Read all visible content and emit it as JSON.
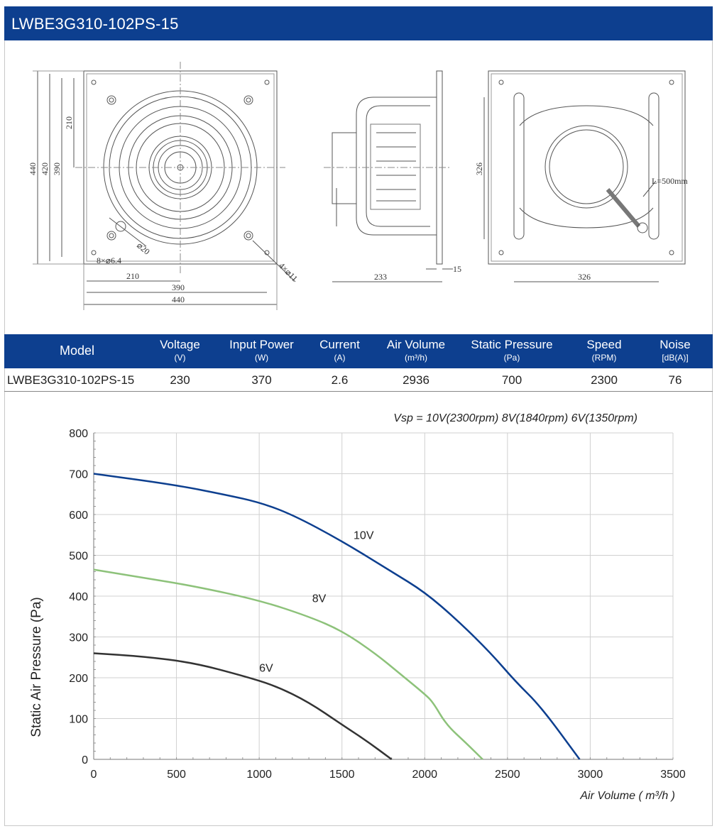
{
  "header": {
    "title": "LWBE3G310-102PS-15"
  },
  "drawings": {
    "front": {
      "dims": [
        "440",
        "420",
        "390",
        "210",
        "8×⌀6.4",
        "⌀20",
        "4×⌀11",
        "210",
        "390",
        "440"
      ]
    },
    "side": {
      "dims": [
        "233",
        "15"
      ]
    },
    "rear": {
      "dims": [
        "326",
        "326",
        "L=500mm"
      ]
    }
  },
  "specs": {
    "columns": [
      {
        "label": "Model",
        "unit": ""
      },
      {
        "label": "Voltage",
        "unit": "(V)"
      },
      {
        "label": "Input Power",
        "unit": "(W)"
      },
      {
        "label": "Current",
        "unit": "(A)"
      },
      {
        "label": "Air Volume",
        "unit": "(m³/h)"
      },
      {
        "label": "Static Pressure",
        "unit": "(Pa)"
      },
      {
        "label": "Speed",
        "unit": "(RPM)"
      },
      {
        "label": "Noise",
        "unit": "[dB(A)]"
      }
    ],
    "row": [
      "LWBE3G310-102PS-15",
      "230",
      "370",
      "2.6",
      "2936",
      "700",
      "2300",
      "76"
    ]
  },
  "chart_data": {
    "type": "line",
    "title": "Vsp = 10V(2300rpm)  8V(1840rpm)   6V(1350rpm)",
    "xlabel": "Air Volume ( m³/h )",
    "ylabel": "Static Air Pressure  (Pa)",
    "xlim": [
      0,
      3500
    ],
    "ylim": [
      0,
      800
    ],
    "xticks": [
      0,
      500,
      1000,
      1500,
      2000,
      2500,
      3000,
      3500
    ],
    "yticks": [
      0,
      100,
      200,
      300,
      400,
      500,
      600,
      700,
      800
    ],
    "grid": true,
    "series": [
      {
        "name": "10V",
        "color": "#0d3f8f",
        "x": [
          0,
          500,
          800,
          1000,
          1200,
          1500,
          1800,
          2000,
          2200,
          2400,
          2550,
          2700,
          2936
        ],
        "y": [
          700,
          672,
          648,
          630,
          600,
          535,
          460,
          410,
          340,
          260,
          190,
          130,
          0
        ]
      },
      {
        "name": "8V",
        "color": "#8dc27a",
        "x": [
          0,
          300,
          600,
          1000,
          1300,
          1500,
          1700,
          1850,
          2000,
          2050,
          2130,
          2250,
          2350
        ],
        "y": [
          465,
          445,
          425,
          390,
          350,
          315,
          260,
          210,
          160,
          140,
          85,
          40,
          0
        ]
      },
      {
        "name": "6V",
        "color": "#333333",
        "x": [
          0,
          300,
          600,
          900,
          1100,
          1300,
          1500,
          1650,
          1800
        ],
        "y": [
          260,
          252,
          237,
          205,
          180,
          140,
          85,
          45,
          0
        ]
      }
    ]
  }
}
